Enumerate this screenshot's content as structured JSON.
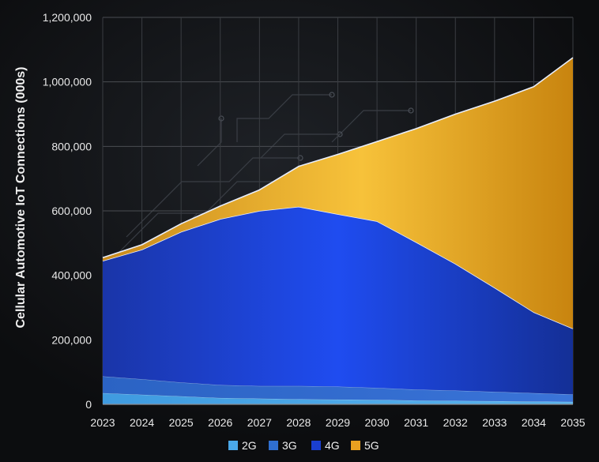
{
  "chart_data": {
    "type": "area",
    "stacked": true,
    "ylabel": "Cellular Automotive IoT Connections (000s)",
    "xlabel": "",
    "x": [
      2023,
      2024,
      2025,
      2026,
      2027,
      2028,
      2029,
      2030,
      2031,
      2032,
      2033,
      2034,
      2035
    ],
    "ylim": [
      0,
      1200000
    ],
    "yticks": [
      0,
      200000,
      400000,
      600000,
      800000,
      1000000,
      1200000
    ],
    "ytick_labels": [
      "0",
      "200,000",
      "400,000",
      "600,000",
      "800,000",
      "1,000,000",
      "1,200,000"
    ],
    "grid": true,
    "legend_position": "bottom-center",
    "series": [
      {
        "name": "2G",
        "color": "#4aa8e8",
        "values": [
          35000,
          30000,
          25000,
          20000,
          18000,
          16000,
          15000,
          14000,
          12000,
          11000,
          10000,
          9000,
          8000
        ]
      },
      {
        "name": "3G",
        "color": "#2f6fd0",
        "values": [
          52000,
          48000,
          43000,
          40000,
          39000,
          41000,
          40000,
          37000,
          34000,
          32000,
          29000,
          26000,
          23000
        ]
      },
      {
        "name": "4G",
        "color": "#1a3fd0",
        "values": [
          358000,
          402000,
          467000,
          515000,
          543000,
          556000,
          535000,
          517000,
          457000,
          393000,
          323000,
          251000,
          204000
        ]
      },
      {
        "name": "5G",
        "color": "#e8a020",
        "values": [
          10000,
          15000,
          25000,
          40000,
          65000,
          125000,
          185000,
          247000,
          352000,
          464000,
          578000,
          699000,
          840000
        ]
      }
    ]
  }
}
